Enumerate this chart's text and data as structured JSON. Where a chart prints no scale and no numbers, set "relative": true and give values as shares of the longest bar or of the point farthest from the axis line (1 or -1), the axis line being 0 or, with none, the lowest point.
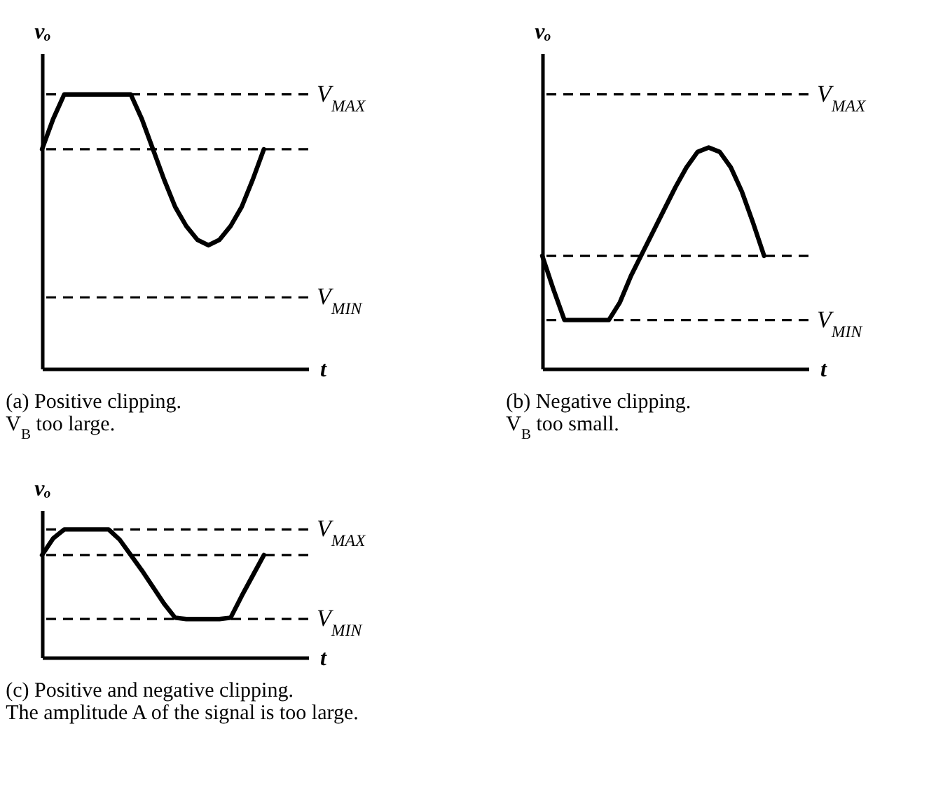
{
  "chart_data": [
    {
      "type": "line",
      "title": "(a) Positive clipping.",
      "subtitle": "V$_{B}$ too large.",
      "xlabel": "t",
      "ylabel": "vₒ",
      "relative": true,
      "color": "#000000",
      "categories": [
        null,
        null,
        null,
        null,
        null,
        null,
        null,
        null,
        null,
        null,
        null,
        null,
        null,
        null,
        null,
        null,
        null,
        null,
        null,
        null,
        null
      ],
      "values": [
        0.8,
        0.91,
        1,
        1,
        1,
        1,
        1,
        1,
        1,
        0.91,
        0.8,
        0.69,
        0.59,
        0.52,
        0.47,
        0.45,
        0.47,
        0.52,
        0.59,
        0.69,
        0.8
      ],
      "ref_lines": [
        {
          "axis": "y",
          "value": 1,
          "label": "V$_{MAX}$",
          "line_style": "dashed",
          "color": "#000000"
        },
        {
          "axis": "y",
          "value": 0.8,
          "line_style": "dashed",
          "color": "#000000"
        },
        {
          "axis": "y",
          "value": 0.26,
          "label": "V$_{MIN}$",
          "line_style": "dashed",
          "color": "#000000"
        }
      ]
    },
    {
      "type": "line",
      "title": "(b) Negative clipping.",
      "subtitle": "V$_{B}$ too small.",
      "xlabel": "t",
      "ylabel": "vₒ",
      "relative": true,
      "color": "#000000",
      "categories": [
        null,
        null,
        null,
        null,
        null,
        null,
        null,
        null,
        null,
        null,
        null,
        null,
        null,
        null,
        null,
        null,
        null,
        null,
        null,
        null,
        null
      ],
      "values": [
        0.51,
        0.36,
        0.22,
        0.22,
        0.22,
        0.22,
        0.22,
        0.3,
        0.42,
        0.52,
        0.62,
        0.72,
        0.82,
        0.91,
        0.98,
        1,
        0.98,
        0.91,
        0.8,
        0.66,
        0.51
      ],
      "ref_lines": [
        {
          "axis": "y",
          "value": 1.24,
          "label": "V$_{MAX}$",
          "line_style": "dashed",
          "color": "#000000"
        },
        {
          "axis": "y",
          "value": 0.51,
          "line_style": "dashed",
          "color": "#000000"
        },
        {
          "axis": "y",
          "value": 0.22,
          "label": "V$_{MIN}$",
          "line_style": "dashed",
          "color": "#000000"
        }
      ]
    },
    {
      "type": "line",
      "title": "(c) Positive and negative clipping.",
      "subtitle": "The amplitude A of the signal is too large.",
      "xlabel": "t",
      "ylabel": "vₒ",
      "relative": true,
      "color": "#000000",
      "categories": [
        null,
        null,
        null,
        null,
        null,
        null,
        null,
        null,
        null,
        null,
        null,
        null,
        null,
        null,
        null,
        null,
        null,
        null,
        null,
        null,
        null
      ],
      "values": [
        0.8,
        0.93,
        1,
        1,
        1,
        1,
        1,
        0.92,
        0.8,
        0.68,
        0.55,
        0.42,
        0.31,
        0.3,
        0.3,
        0.3,
        0.3,
        0.31,
        0.48,
        0.64,
        0.8
      ],
      "ref_lines": [
        {
          "axis": "y",
          "value": 1,
          "label": "V$_{MAX}$",
          "line_style": "dashed",
          "color": "#000000"
        },
        {
          "axis": "y",
          "value": 0.8,
          "line_style": "dashed",
          "color": "#000000"
        },
        {
          "axis": "y",
          "value": 0.3,
          "label": "V$_{MIN}$",
          "line_style": "dashed",
          "color": "#000000"
        }
      ]
    }
  ]
}
